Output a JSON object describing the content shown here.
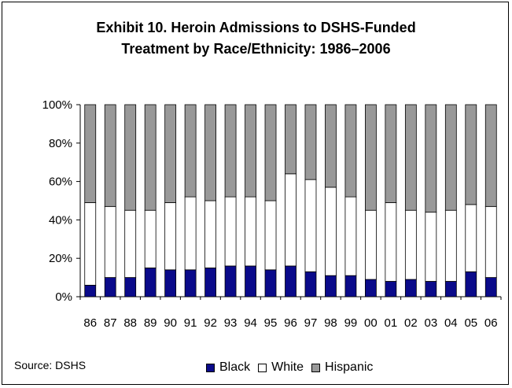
{
  "chart_data": {
    "type": "bar",
    "stacked": true,
    "percent": true,
    "title_lines": [
      "Exhibit 10. Heroin Admissions to DSHS-Funded",
      "Treatment by Race/Ethnicity: 1986–2006"
    ],
    "categories": [
      "86",
      "87",
      "88",
      "89",
      "90",
      "91",
      "92",
      "93",
      "94",
      "95",
      "96",
      "97",
      "98",
      "99",
      "00",
      "01",
      "02",
      "03",
      "04",
      "05",
      "06"
    ],
    "series": [
      {
        "name": "Black",
        "color": "#0a0a8a",
        "values": [
          6,
          10,
          10,
          15,
          14,
          14,
          15,
          16,
          16,
          14,
          16,
          13,
          11,
          11,
          9,
          8,
          9,
          8,
          8,
          13,
          10
        ]
      },
      {
        "name": "White",
        "color": "#ffffff",
        "values": [
          43,
          37,
          35,
          30,
          35,
          38,
          35,
          36,
          36,
          36,
          48,
          48,
          46,
          41,
          36,
          41,
          36,
          36,
          37,
          35,
          37
        ]
      },
      {
        "name": "Hispanic",
        "color": "#999999",
        "values": [
          51,
          53,
          55,
          55,
          51,
          48,
          50,
          48,
          48,
          50,
          36,
          39,
          43,
          48,
          55,
          51,
          55,
          56,
          55,
          52,
          53
        ]
      }
    ],
    "yticks": [
      "0%",
      "20%",
      "40%",
      "60%",
      "80%",
      "100%"
    ],
    "ylim": [
      0,
      100
    ],
    "legend_position": "bottom"
  },
  "source": "Source: DSHS"
}
